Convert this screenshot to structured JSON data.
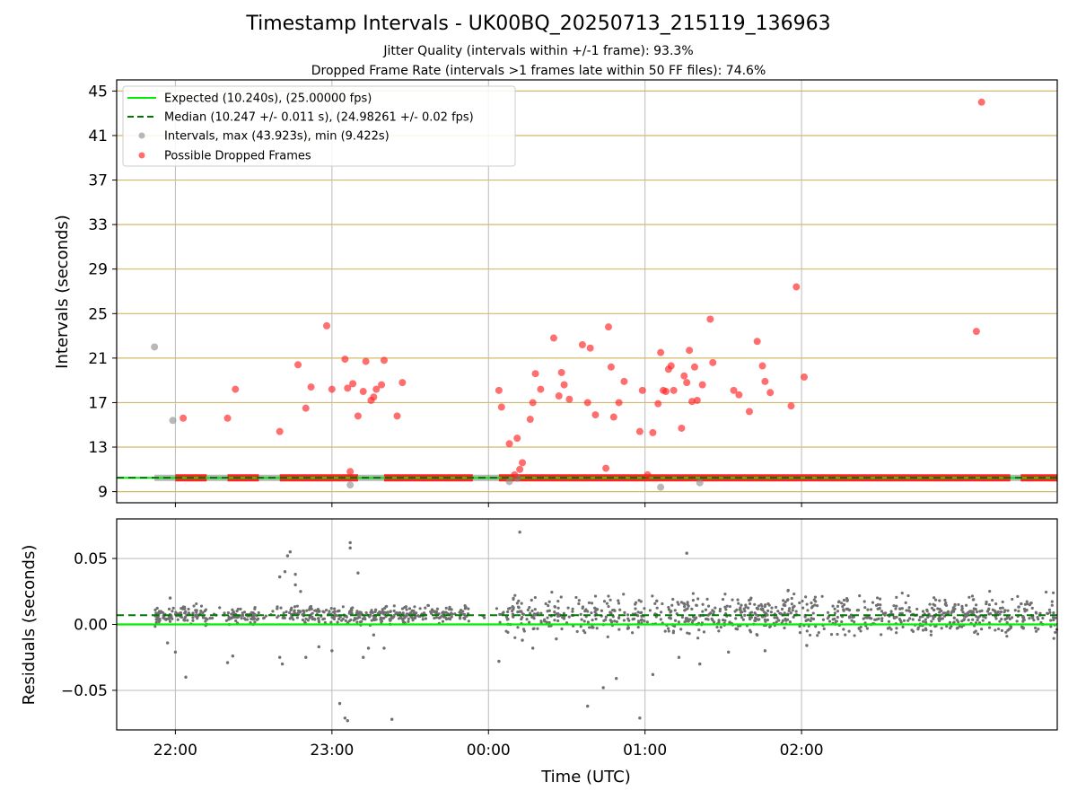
{
  "title": "Timestamp Intervals - UK00BQ_20250713_215119_136963",
  "subtitle_jitter": "Jitter Quality (intervals within +/-1 frame): 93.3%",
  "subtitle_dropped": "Dropped Frame Rate (intervals >1 frames late within 50 FF files): 74.6%",
  "colors": {
    "expected": "#00ee00",
    "median": "#007700",
    "intervals": "#888888",
    "dropped": "#ff2222",
    "grid_top": "#d4b86a",
    "grid": "#bbbbbb"
  },
  "chart_data": [
    {
      "type": "scatter",
      "name": "intervals",
      "xlabel": "",
      "ylabel": "Intervals (seconds)",
      "ylim": [
        8,
        46
      ],
      "xlim": [
        -22.5,
        338
      ],
      "x_ticks": [
        "22:00",
        "23:00",
        "00:00",
        "01:00",
        "02:00"
      ],
      "y_ticks": [
        9,
        13,
        17,
        21,
        25,
        29,
        33,
        37,
        41,
        45
      ],
      "grid": true,
      "legend_position": "top-left",
      "legend": [
        "Expected (10.240s), (25.00000 fps)",
        "Median (10.247 +/- 0.011 s), (24.98261 +/- 0.02 fps)",
        "Intervals, max (43.923s), min (9.422s)",
        "Possible Dropped Frames"
      ],
      "expected_value": 10.24,
      "median_value": 10.247,
      "dropped_segments": [
        [
          0,
          12
        ],
        [
          20,
          32
        ],
        [
          40,
          70
        ],
        [
          80,
          114
        ],
        [
          124,
          320
        ],
        [
          324,
          338
        ]
      ],
      "gray_points": [
        [
          -8,
          22.0
        ],
        [
          -1,
          15.4
        ],
        [
          67,
          9.6
        ],
        [
          128,
          9.9
        ],
        [
          131,
          10.2
        ],
        [
          186,
          9.4
        ],
        [
          201,
          9.8
        ]
      ],
      "red_points": [
        [
          3,
          15.6
        ],
        [
          20,
          15.6
        ],
        [
          23,
          18.2
        ],
        [
          40,
          14.4
        ],
        [
          47,
          20.4
        ],
        [
          50,
          16.5
        ],
        [
          52,
          18.4
        ],
        [
          58,
          23.9
        ],
        [
          60,
          18.2
        ],
        [
          65,
          20.9
        ],
        [
          66,
          18.3
        ],
        [
          67,
          10.8
        ],
        [
          68,
          18.7
        ],
        [
          70,
          15.8
        ],
        [
          72,
          18.0
        ],
        [
          73,
          20.7
        ],
        [
          75,
          17.2
        ],
        [
          76,
          17.5
        ],
        [
          77,
          18.2
        ],
        [
          79,
          18.6
        ],
        [
          80,
          20.8
        ],
        [
          85,
          15.8
        ],
        [
          87,
          18.8
        ],
        [
          124,
          18.1
        ],
        [
          125,
          16.6
        ],
        [
          128,
          13.3
        ],
        [
          130,
          10.5
        ],
        [
          131,
          13.8
        ],
        [
          132,
          11.0
        ],
        [
          133,
          11.6
        ],
        [
          136,
          15.5
        ],
        [
          137,
          17.0
        ],
        [
          138,
          19.6
        ],
        [
          140,
          18.2
        ],
        [
          145,
          22.8
        ],
        [
          147,
          17.6
        ],
        [
          148,
          19.7
        ],
        [
          149,
          18.6
        ],
        [
          151,
          17.3
        ],
        [
          156,
          22.2
        ],
        [
          158,
          17.0
        ],
        [
          159,
          21.9
        ],
        [
          161,
          15.9
        ],
        [
          165,
          11.1
        ],
        [
          166,
          23.8
        ],
        [
          167,
          20.2
        ],
        [
          168,
          15.7
        ],
        [
          170,
          17.0
        ],
        [
          172,
          18.9
        ],
        [
          178,
          14.4
        ],
        [
          179,
          18.1
        ],
        [
          181,
          10.5
        ],
        [
          183,
          14.3
        ],
        [
          185,
          16.9
        ],
        [
          186,
          21.5
        ],
        [
          187,
          18.1
        ],
        [
          188,
          18.0
        ],
        [
          189,
          20.0
        ],
        [
          190,
          20.3
        ],
        [
          191,
          18.1
        ],
        [
          194,
          14.7
        ],
        [
          195,
          19.4
        ],
        [
          196,
          18.8
        ],
        [
          197,
          21.7
        ],
        [
          198,
          17.1
        ],
        [
          199,
          20.2
        ],
        [
          200,
          17.2
        ],
        [
          202,
          18.6
        ],
        [
          205,
          24.5
        ],
        [
          206,
          20.6
        ],
        [
          214,
          18.1
        ],
        [
          216,
          17.7
        ],
        [
          220,
          16.2
        ],
        [
          223,
          22.5
        ],
        [
          225,
          20.3
        ],
        [
          226,
          18.9
        ],
        [
          228,
          17.9
        ],
        [
          236,
          16.7
        ],
        [
          238,
          27.4
        ],
        [
          241,
          19.3
        ],
        [
          307,
          23.4
        ],
        [
          309,
          44.0
        ]
      ]
    },
    {
      "type": "scatter",
      "name": "residuals",
      "xlabel": "Time (UTC)",
      "ylabel": "Residuals (seconds)",
      "ylim": [
        -0.08,
        0.08
      ],
      "x_ticks": [
        "22:00",
        "23:00",
        "00:00",
        "01:00",
        "02:00"
      ],
      "y_ticks": [
        "0.05",
        "0.00",
        "−0.05"
      ],
      "expected_value": 0.0,
      "median_value": 0.007,
      "outliers": [
        [
          -2,
          0.02
        ],
        [
          -3,
          -0.014
        ],
        [
          0,
          -0.021
        ],
        [
          4,
          -0.04
        ],
        [
          20,
          -0.029
        ],
        [
          22,
          -0.024
        ],
        [
          39,
          0.012
        ],
        [
          40,
          -0.025
        ],
        [
          41,
          -0.03
        ],
        [
          40,
          0.036
        ],
        [
          42,
          0.04
        ],
        [
          43,
          0.052
        ],
        [
          44,
          0.055
        ],
        [
          46,
          0.038
        ],
        [
          46,
          0.03
        ],
        [
          48,
          0.025
        ],
        [
          50,
          -0.025
        ],
        [
          55,
          -0.017
        ],
        [
          60,
          -0.02
        ],
        [
          63,
          -0.06
        ],
        [
          65,
          -0.071
        ],
        [
          66,
          -0.073
        ],
        [
          67,
          0.062
        ],
        [
          67,
          0.058
        ],
        [
          70,
          0.039
        ],
        [
          72,
          -0.025
        ],
        [
          74,
          -0.018
        ],
        [
          76,
          -0.008
        ],
        [
          80,
          -0.018
        ],
        [
          83,
          -0.072
        ],
        [
          124,
          -0.028
        ],
        [
          132,
          0.07
        ],
        [
          133,
          -0.012
        ],
        [
          137,
          -0.018
        ],
        [
          146,
          -0.011
        ],
        [
          158,
          -0.062
        ],
        [
          164,
          -0.048
        ],
        [
          169,
          -0.041
        ],
        [
          178,
          -0.071
        ],
        [
          183,
          -0.038
        ],
        [
          193,
          -0.025
        ],
        [
          196,
          0.054
        ],
        [
          201,
          -0.03
        ],
        [
          212,
          -0.021
        ],
        [
          226,
          -0.02
        ],
        [
          242,
          -0.016
        ]
      ]
    }
  ]
}
